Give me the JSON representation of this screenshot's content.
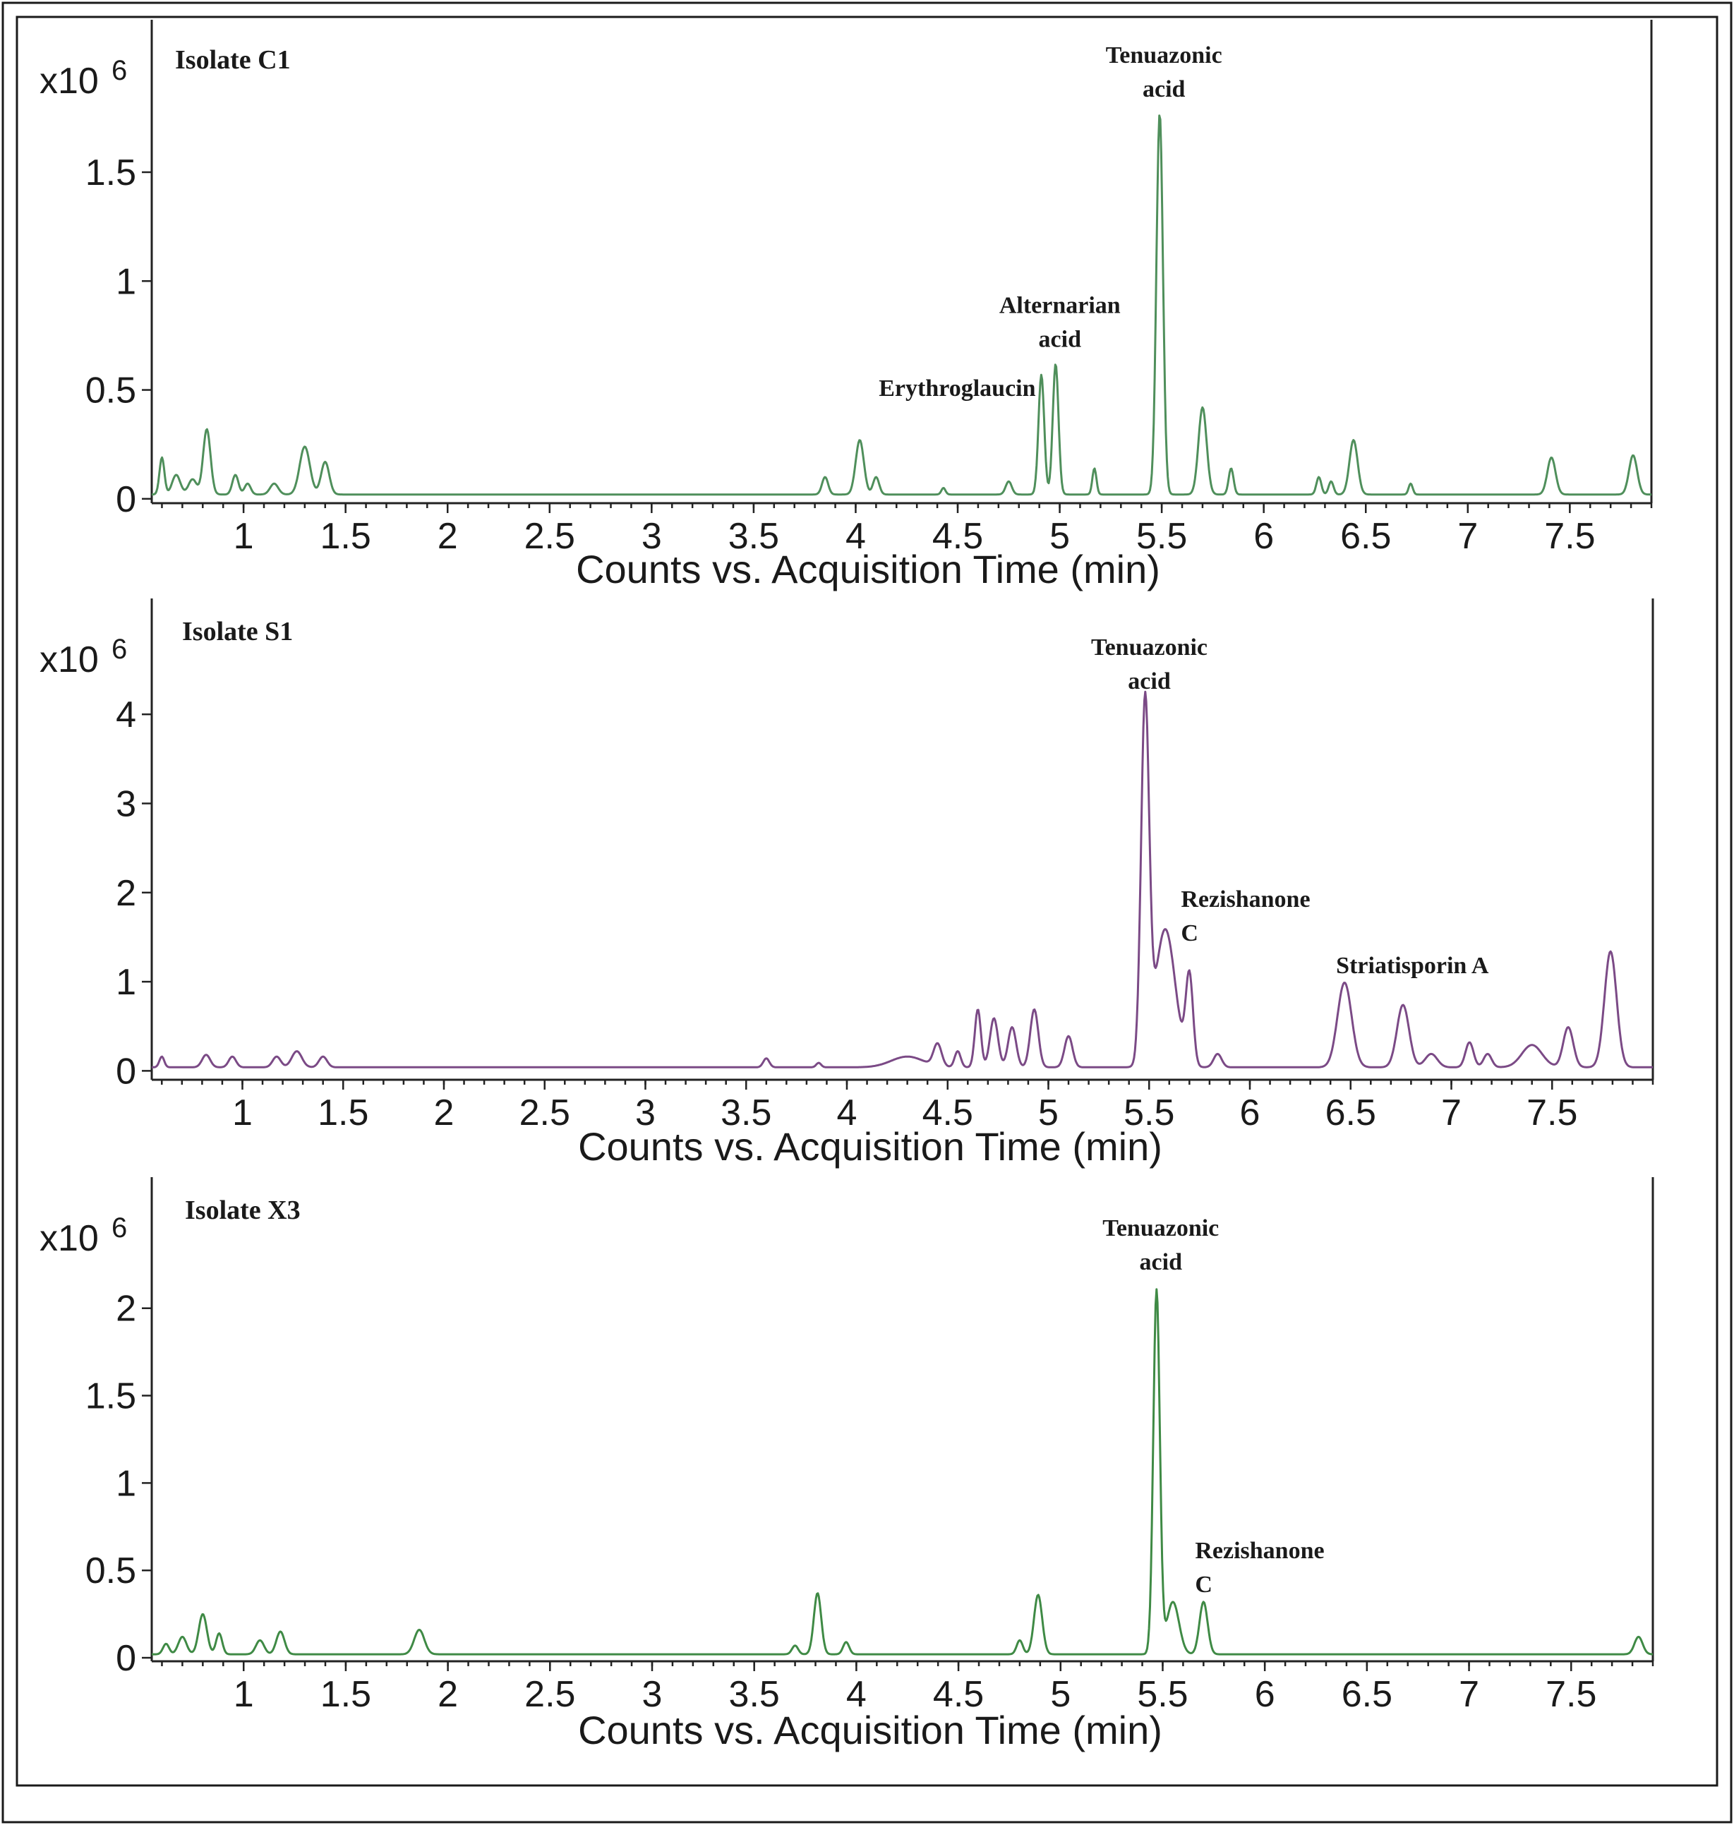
{
  "colors": {
    "C1": "#4f8f5b",
    "S1": "#7b4a86",
    "X3": "#3f8a45"
  },
  "chart_data": [
    {
      "type": "line",
      "panel_label": "Isolate C1",
      "multiplier": "x10",
      "multiplier_exponent": "6",
      "xlabel": "Counts vs. Acquisition Time (min)",
      "ylabel": "",
      "xlim": [
        0.55,
        7.9
      ],
      "ylim": [
        -0.02,
        2.2
      ],
      "xticks": [
        "1",
        "1.5",
        "2",
        "2.5",
        "3",
        "3.5",
        "4",
        "4.5",
        "5",
        "5.5",
        "6",
        "6.5",
        "7",
        "7.5"
      ],
      "yticks": [
        "0",
        "0.5",
        "1",
        "1.5"
      ],
      "baseline": 0.02,
      "peaks": [
        [
          0.6,
          0.17,
          0.012
        ],
        [
          0.67,
          0.09,
          0.02
        ],
        [
          0.75,
          0.07,
          0.02
        ],
        [
          0.82,
          0.3,
          0.018
        ],
        [
          0.96,
          0.09,
          0.015
        ],
        [
          1.02,
          0.05,
          0.015
        ],
        [
          1.15,
          0.05,
          0.02
        ],
        [
          1.3,
          0.22,
          0.025
        ],
        [
          1.4,
          0.15,
          0.02
        ],
        [
          3.85,
          0.08,
          0.015
        ],
        [
          4.02,
          0.25,
          0.02
        ],
        [
          4.1,
          0.08,
          0.015
        ],
        [
          4.43,
          0.03,
          0.01
        ],
        [
          4.75,
          0.06,
          0.015
        ],
        [
          4.91,
          0.55,
          0.014
        ],
        [
          4.98,
          0.6,
          0.014
        ],
        [
          5.17,
          0.12,
          0.01
        ],
        [
          5.49,
          1.75,
          0.016
        ],
        [
          5.7,
          0.4,
          0.02
        ],
        [
          5.84,
          0.12,
          0.012
        ],
        [
          6.27,
          0.08,
          0.012
        ],
        [
          6.33,
          0.06,
          0.012
        ],
        [
          6.44,
          0.25,
          0.02
        ],
        [
          6.72,
          0.05,
          0.01
        ],
        [
          7.41,
          0.17,
          0.02
        ],
        [
          7.81,
          0.18,
          0.02
        ]
      ],
      "annotations": [
        {
          "lines": [
            "Tenuazonic",
            "acid"
          ],
          "x": 5.49,
          "y": 1.75
        },
        {
          "lines": [
            "Alternarian",
            "acid"
          ],
          "x": 4.98,
          "y": 0.6
        },
        {
          "lines": [
            "Erythroglaucin"
          ],
          "x": 4.91,
          "y": 0.55
        }
      ]
    },
    {
      "type": "line",
      "panel_label": "Isolate S1",
      "multiplier": "x10",
      "multiplier_exponent": "6",
      "xlabel": "Counts vs. Acquisition Time (min)",
      "ylabel": "",
      "xlim": [
        0.55,
        8.0
      ],
      "ylim": [
        -0.1,
        5.3
      ],
      "xticks": [
        "1",
        "1.5",
        "2",
        "2.5",
        "3",
        "3.5",
        "4",
        "4.5",
        "5",
        "5.5",
        "6",
        "6.5",
        "7",
        "7.5"
      ],
      "yticks": [
        "0",
        "1",
        "2",
        "3",
        "4"
      ],
      "baseline": 0.04,
      "peaks": [
        [
          0.6,
          0.12,
          0.012
        ],
        [
          0.82,
          0.14,
          0.02
        ],
        [
          0.95,
          0.12,
          0.018
        ],
        [
          1.17,
          0.12,
          0.02
        ],
        [
          1.27,
          0.18,
          0.025
        ],
        [
          1.4,
          0.12,
          0.02
        ],
        [
          3.6,
          0.1,
          0.015
        ],
        [
          3.86,
          0.05,
          0.012
        ],
        [
          4.3,
          0.12,
          0.08
        ],
        [
          4.45,
          0.25,
          0.02
        ],
        [
          4.55,
          0.18,
          0.015
        ],
        [
          4.65,
          0.65,
          0.015
        ],
        [
          4.73,
          0.55,
          0.02
        ],
        [
          4.82,
          0.45,
          0.02
        ],
        [
          4.93,
          0.65,
          0.02
        ],
        [
          5.1,
          0.35,
          0.02
        ],
        [
          5.48,
          4.0,
          0.02
        ],
        [
          5.58,
          1.55,
          0.05
        ],
        [
          5.7,
          1.0,
          0.018
        ],
        [
          5.84,
          0.15,
          0.02
        ],
        [
          6.47,
          0.95,
          0.035
        ],
        [
          6.76,
          0.7,
          0.03
        ],
        [
          6.9,
          0.15,
          0.03
        ],
        [
          7.09,
          0.28,
          0.02
        ],
        [
          7.18,
          0.15,
          0.02
        ],
        [
          7.4,
          0.25,
          0.05
        ],
        [
          7.58,
          0.45,
          0.025
        ],
        [
          7.79,
          1.3,
          0.03
        ]
      ],
      "annotations": [
        {
          "lines": [
            "Tenuazonic",
            "acid"
          ],
          "x": 5.48,
          "y": 4.05
        },
        {
          "lines": [
            "Rezishanone",
            "C"
          ],
          "x": 5.7,
          "y": 1.35
        },
        {
          "lines": [
            "Striatisporin A"
          ],
          "x": 6.47,
          "y": 1.0
        }
      ]
    },
    {
      "type": "line",
      "panel_label": "Isolate X3",
      "multiplier": "x10",
      "multiplier_exponent": "6",
      "xlabel": "Counts vs. Acquisition Time (min)",
      "ylabel": "",
      "xlim": [
        0.55,
        7.9
      ],
      "ylim": [
        -0.02,
        2.75
      ],
      "xticks": [
        "1",
        "1.5",
        "2",
        "2.5",
        "3",
        "3.5",
        "4",
        "4.5",
        "5",
        "5.5",
        "6",
        "6.5",
        "7",
        "7.5"
      ],
      "yticks": [
        "0",
        "0.5",
        "1",
        "1.5",
        "2"
      ],
      "baseline": 0.02,
      "peaks": [
        [
          0.62,
          0.06,
          0.015
        ],
        [
          0.7,
          0.1,
          0.02
        ],
        [
          0.8,
          0.23,
          0.02
        ],
        [
          0.88,
          0.12,
          0.015
        ],
        [
          1.08,
          0.08,
          0.02
        ],
        [
          1.18,
          0.13,
          0.02
        ],
        [
          1.86,
          0.14,
          0.025
        ],
        [
          3.7,
          0.05,
          0.015
        ],
        [
          3.81,
          0.35,
          0.018
        ],
        [
          3.95,
          0.07,
          0.015
        ],
        [
          4.8,
          0.08,
          0.015
        ],
        [
          4.89,
          0.34,
          0.02
        ],
        [
          5.47,
          2.08,
          0.016
        ],
        [
          5.55,
          0.3,
          0.03
        ],
        [
          5.7,
          0.3,
          0.02
        ],
        [
          7.83,
          0.1,
          0.02
        ]
      ],
      "annotations": [
        {
          "lines": [
            "Tenuazonic",
            "acid"
          ],
          "x": 5.47,
          "y": 2.1
        },
        {
          "lines": [
            "Rezishanone",
            "C"
          ],
          "x": 5.7,
          "y": 0.32
        }
      ]
    }
  ]
}
